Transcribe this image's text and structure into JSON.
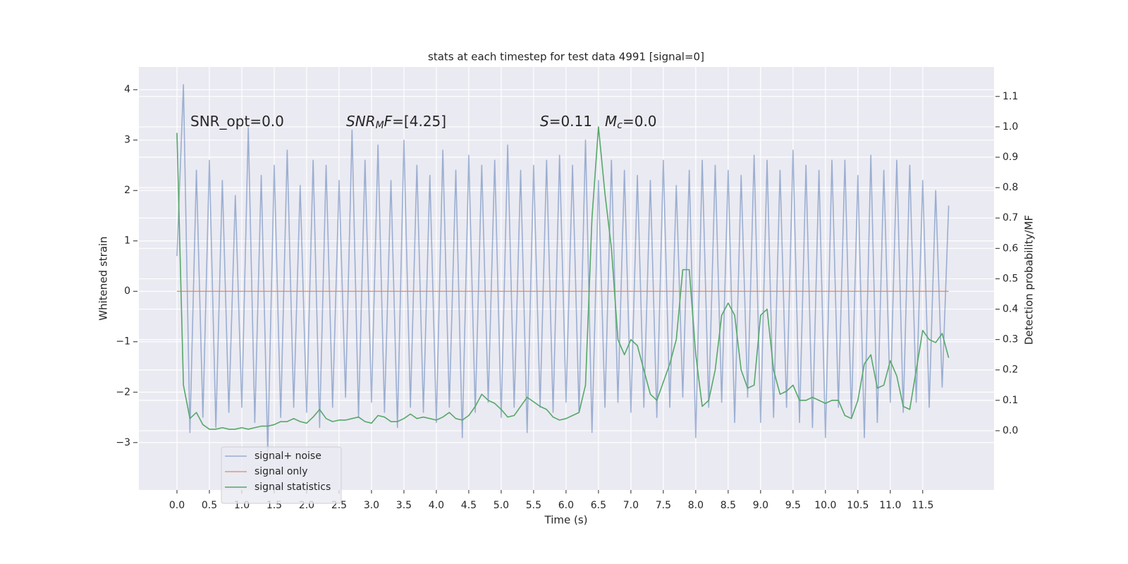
{
  "chart_data": {
    "type": "line",
    "title": "stats at each timestep for test data 4991 [signal=0]",
    "xlabel": "Time (s)",
    "ylabel": "Whitened strain",
    "y2label": "Detection probability/MF",
    "x": [
      0,
      0.1,
      0.2,
      0.3,
      0.4,
      0.5,
      0.6,
      0.7,
      0.8,
      0.9,
      1,
      1.1,
      1.2,
      1.3,
      1.4,
      1.5,
      1.6,
      1.7,
      1.8,
      1.9,
      2,
      2.1,
      2.2,
      2.3,
      2.4,
      2.5,
      2.6,
      2.7,
      2.8,
      2.9,
      3,
      3.1,
      3.2,
      3.3,
      3.4,
      3.5,
      3.6,
      3.7,
      3.8,
      3.9,
      4,
      4.1,
      4.2,
      4.3,
      4.4,
      4.5,
      4.6,
      4.7,
      4.8,
      4.9,
      5,
      5.1,
      5.2,
      5.3,
      5.4,
      5.5,
      5.6,
      5.7,
      5.8,
      5.9,
      6,
      6.1,
      6.2,
      6.3,
      6.4,
      6.5,
      6.6,
      6.7,
      6.8,
      6.9,
      7,
      7.1,
      7.2,
      7.3,
      7.4,
      7.5,
      7.6,
      7.7,
      7.8,
      7.9,
      8,
      8.1,
      8.2,
      8.3,
      8.4,
      8.5,
      8.6,
      8.7,
      8.8,
      8.9,
      9,
      9.1,
      9.2,
      9.3,
      9.4,
      9.5,
      9.6,
      9.7,
      9.8,
      9.9,
      10,
      10.1,
      10.2,
      10.3,
      10.4,
      10.5,
      10.6,
      10.7,
      10.8,
      10.9,
      11,
      11.1,
      11.2,
      11.3,
      11.4,
      11.5,
      11.6,
      11.7,
      11.8,
      11.9
    ],
    "series": [
      {
        "name": "signal+ noise",
        "color": "#4c72b0",
        "opacity": 0.5,
        "values": [
          0.7,
          4.1,
          -2.8,
          2.4,
          -2.5,
          2.6,
          -2.7,
          2.2,
          -2.4,
          1.9,
          -2.3,
          3.25,
          -2.6,
          2.3,
          -3.2,
          2.5,
          -2.5,
          2.8,
          -2.3,
          2.1,
          -2.4,
          2.6,
          -2.7,
          2.5,
          -2.3,
          2.2,
          -2.1,
          3.2,
          -2.5,
          2.6,
          -2.2,
          2.9,
          -2.4,
          2.2,
          -2.7,
          3.0,
          -2.3,
          2.5,
          -2.4,
          2.3,
          -2.6,
          2.8,
          -2.3,
          2.4,
          -2.9,
          2.7,
          -2.4,
          2.5,
          -2.2,
          2.6,
          -2.5,
          2.9,
          -2.3,
          2.4,
          -2.8,
          2.5,
          -2.3,
          2.6,
          -2.4,
          2.7,
          -2.2,
          2.5,
          -2.4,
          3.0,
          -2.8,
          2.2,
          -2.3,
          2.6,
          -2.2,
          2.4,
          -2.4,
          2.3,
          -2.3,
          2.2,
          -2.5,
          2.6,
          -2.3,
          2.1,
          -2.1,
          2.4,
          -2.9,
          2.6,
          -2.3,
          2.5,
          -2.2,
          2.4,
          -2.6,
          2.3,
          -2.1,
          2.7,
          -2.6,
          2.6,
          -2.5,
          2.4,
          -2.3,
          2.8,
          -2.6,
          2.5,
          -2.7,
          2.4,
          -2.9,
          2.6,
          -2.3,
          2.6,
          -2.5,
          2.3,
          -2.9,
          2.7,
          -2.6,
          2.4,
          -2.2,
          2.6,
          -2.4,
          2.5,
          -2.2,
          2.2,
          -2.3,
          2.0,
          -1.9,
          1.7
        ]
      },
      {
        "name": "signal only",
        "color": "#dd8452",
        "opacity": 0.8,
        "values": [
          0,
          0,
          0,
          0,
          0,
          0,
          0,
          0,
          0,
          0,
          0,
          0,
          0,
          0,
          0,
          0,
          0,
          0,
          0,
          0,
          0,
          0,
          0,
          0,
          0,
          0,
          0,
          0,
          0,
          0,
          0,
          0,
          0,
          0,
          0,
          0,
          0,
          0,
          0,
          0,
          0,
          0,
          0,
          0,
          0,
          0,
          0,
          0,
          0,
          0,
          0,
          0,
          0,
          0,
          0,
          0,
          0,
          0,
          0,
          0,
          0,
          0,
          0,
          0,
          0,
          0,
          0,
          0,
          0,
          0,
          0,
          0,
          0,
          0,
          0,
          0,
          0,
          0,
          0,
          0,
          0,
          0,
          0,
          0,
          0,
          0,
          0,
          0,
          0,
          0,
          0,
          0,
          0,
          0,
          0,
          0,
          0,
          0,
          0,
          0,
          0,
          0,
          0,
          0,
          0,
          0,
          0,
          0,
          0,
          0,
          0,
          0,
          0,
          0,
          0,
          0,
          0,
          0,
          0,
          0
        ]
      },
      {
        "name": "signal statistics",
        "color": "#55a868",
        "opacity": 1,
        "axis": "y2",
        "values": [
          0.98,
          0.15,
          0.04,
          0.06,
          0.02,
          0.005,
          0.005,
          0.01,
          0.005,
          0.005,
          0.01,
          0.005,
          0.01,
          0.015,
          0.015,
          0.02,
          0.03,
          0.03,
          0.04,
          0.03,
          0.025,
          0.045,
          0.07,
          0.04,
          0.03,
          0.035,
          0.035,
          0.04,
          0.045,
          0.03,
          0.025,
          0.05,
          0.045,
          0.03,
          0.03,
          0.04,
          0.055,
          0.04,
          0.045,
          0.04,
          0.035,
          0.045,
          0.06,
          0.04,
          0.035,
          0.05,
          0.08,
          0.12,
          0.1,
          0.09,
          0.07,
          0.045,
          0.05,
          0.08,
          0.11,
          0.095,
          0.08,
          0.07,
          0.045,
          0.035,
          0.04,
          0.05,
          0.06,
          0.15,
          0.7,
          1.0,
          0.78,
          0.6,
          0.3,
          0.25,
          0.3,
          0.28,
          0.2,
          0.12,
          0.1,
          0.16,
          0.22,
          0.3,
          0.53,
          0.53,
          0.25,
          0.08,
          0.1,
          0.2,
          0.38,
          0.42,
          0.38,
          0.2,
          0.14,
          0.15,
          0.38,
          0.4,
          0.2,
          0.12,
          0.13,
          0.15,
          0.1,
          0.1,
          0.11,
          0.1,
          0.09,
          0.1,
          0.1,
          0.05,
          0.04,
          0.1,
          0.22,
          0.25,
          0.14,
          0.15,
          0.23,
          0.18,
          0.08,
          0.07,
          0.2,
          0.33,
          0.3,
          0.29,
          0.32,
          0.24
        ]
      }
    ],
    "annotations": [
      {
        "parts": [
          {
            "text": "SNR_opt=0.0"
          }
        ]
      },
      {
        "parts": [
          {
            "text": "SNR",
            "italic": true
          },
          {
            "text": "M",
            "italic": true,
            "sub": true
          },
          {
            "text": "F",
            "italic": true
          },
          {
            "text": "=[4.25]"
          }
        ]
      },
      {
        "parts": [
          {
            "text": "S",
            "italic": true
          },
          {
            "text": "=0.11"
          }
        ]
      },
      {
        "parts": [
          {
            "text": "M",
            "italic": true
          },
          {
            "text": "c",
            "italic": true,
            "sub": true
          },
          {
            "text": "=0.0"
          }
        ]
      }
    ],
    "xlim": [
      -0.587,
      12.6
    ],
    "xticks": [
      {
        "value": 0,
        "label": "0.0"
      },
      0.5,
      {
        "value": 1,
        "label": "1.0"
      },
      1.5,
      {
        "value": 2,
        "label": "2.0"
      },
      2.5,
      {
        "value": 3,
        "label": "3.0"
      },
      3.5,
      {
        "value": 4,
        "label": "4.0"
      },
      4.5,
      {
        "value": 5,
        "label": "5.0"
      },
      5.5,
      {
        "value": 6,
        "label": "6.0"
      },
      6.5,
      {
        "value": 7,
        "label": "7.0"
      },
      7.5,
      {
        "value": 8,
        "label": "8.0"
      },
      8.5,
      {
        "value": 9,
        "label": "9.0"
      },
      9.5,
      {
        "value": 10,
        "label": "10.0"
      },
      10.5,
      {
        "value": 11,
        "label": "11.0"
      },
      11.5
    ],
    "ylim": [
      -3.94,
      4.45
    ],
    "yticks": [
      {
        "value": -3,
        "label": "−3"
      },
      {
        "value": -2,
        "label": "−2"
      },
      {
        "value": -1,
        "label": "−1"
      },
      0,
      1,
      2,
      3,
      4
    ],
    "y2lim": [
      -0.195,
      1.197
    ],
    "y2ticks": [
      {
        "value": 0,
        "label": "0.0"
      },
      0.1,
      0.2,
      0.3,
      0.4,
      0.5,
      0.6,
      0.7,
      0.8,
      0.9,
      {
        "value": 1,
        "label": "1.0"
      },
      1.1
    ],
    "grid": true,
    "legend": "lower left"
  }
}
